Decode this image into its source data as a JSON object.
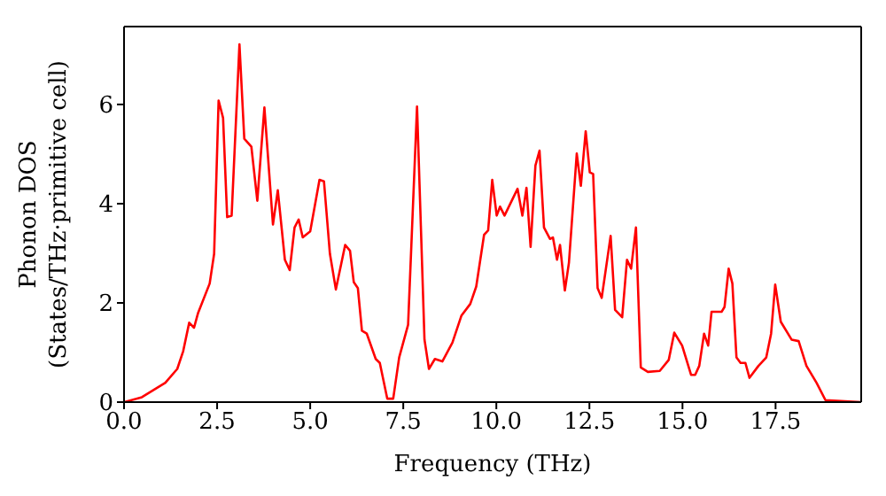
{
  "chart_data": {
    "type": "line",
    "xlabel": "Frequency (THz)",
    "ylabel": "Phonon DOS\n(States/THz·primitive cell)",
    "x": [
      0,
      0.48,
      1.11,
      1.43,
      1.59,
      1.75,
      1.88,
      1.99,
      2.3,
      2.42,
      2.54,
      2.66,
      2.77,
      2.89,
      3.1,
      3.23,
      3.42,
      3.58,
      3.77,
      4.0,
      4.13,
      4.32,
      4.45,
      4.58,
      4.69,
      4.8,
      5.0,
      5.25,
      5.37,
      5.53,
      5.69,
      5.94,
      6.07,
      6.17,
      6.28,
      6.39,
      6.52,
      6.76,
      6.87,
      7.07,
      7.23,
      7.39,
      7.63,
      7.87,
      8.07,
      8.19,
      8.35,
      8.55,
      8.82,
      9.06,
      9.3,
      9.46,
      9.67,
      9.78,
      9.89,
      10.01,
      10.1,
      10.22,
      10.57,
      10.7,
      10.81,
      10.92,
      11.05,
      11.16,
      11.28,
      11.44,
      11.52,
      11.63,
      11.71,
      11.84,
      11.95,
      12.16,
      12.27,
      12.4,
      12.51,
      12.6,
      12.72,
      12.83,
      13.07,
      13.19,
      13.38,
      13.51,
      13.62,
      13.75,
      13.88,
      14.07,
      14.39,
      14.63,
      14.78,
      14.99,
      15.23,
      15.34,
      15.45,
      15.58,
      15.69,
      15.78,
      16.05,
      16.13,
      16.24,
      16.34,
      16.45,
      16.56,
      16.69,
      16.8,
      17.04,
      17.25,
      17.38,
      17.49,
      17.64,
      17.93,
      18.12,
      18.33,
      18.6,
      18.84,
      19.79
    ],
    "series": [
      {
        "color": "#ff0000",
        "values": [
          0,
          0.1,
          0.39,
          0.67,
          1.03,
          1.6,
          1.5,
          1.8,
          2.39,
          2.99,
          6.08,
          5.73,
          3.73,
          3.76,
          7.21,
          5.31,
          5.15,
          4.06,
          5.94,
          3.58,
          4.27,
          2.87,
          2.66,
          3.52,
          3.68,
          3.32,
          3.44,
          4.48,
          4.45,
          2.99,
          2.27,
          3.17,
          3.05,
          2.42,
          2.3,
          1.44,
          1.38,
          0.87,
          0.79,
          0.07,
          0.07,
          0.9,
          1.56,
          5.96,
          1.26,
          0.67,
          0.87,
          0.82,
          1.2,
          1.74,
          1.98,
          2.33,
          3.37,
          3.46,
          4.48,
          3.76,
          3.94,
          3.76,
          4.3,
          3.76,
          4.32,
          3.13,
          4.77,
          5.07,
          3.52,
          3.29,
          3.32,
          2.87,
          3.17,
          2.25,
          2.81,
          5.01,
          4.36,
          5.46,
          4.63,
          4.6,
          2.3,
          2.1,
          3.35,
          1.86,
          1.71,
          2.87,
          2.69,
          3.52,
          0.7,
          0.61,
          0.63,
          0.85,
          1.4,
          1.14,
          0.55,
          0.55,
          0.73,
          1.38,
          1.14,
          1.82,
          1.82,
          1.92,
          2.69,
          2.39,
          0.9,
          0.79,
          0.79,
          0.49,
          0.73,
          0.9,
          1.38,
          2.37,
          1.62,
          1.26,
          1.23,
          0.73,
          0.39,
          0.04,
          0
        ]
      }
    ],
    "xlim": [
      0,
      19.8
    ],
    "ylim": [
      0,
      7.57
    ],
    "xticks": [
      {
        "value": 0,
        "label": "0.0"
      },
      {
        "value": 2.5,
        "label": "2.5"
      },
      {
        "value": 5,
        "label": "5.0"
      },
      {
        "value": 7.5,
        "label": "7.5"
      },
      {
        "value": 10,
        "label": "10.0"
      },
      {
        "value": 12.5,
        "label": "12.5"
      },
      {
        "value": 15,
        "label": "15.0"
      },
      {
        "value": 17.5,
        "label": "17.5"
      }
    ],
    "yticks": [
      0,
      2,
      4,
      6
    ],
    "grid": false,
    "marker": "none",
    "line_style": "solid"
  }
}
